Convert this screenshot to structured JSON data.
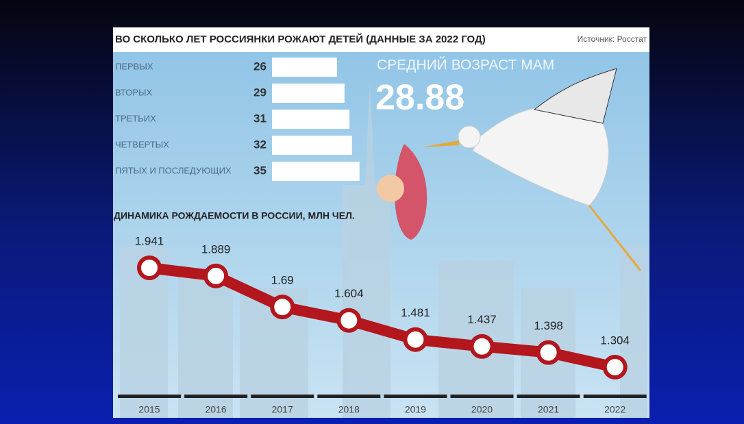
{
  "header": {
    "title": "ВО СКОЛЬКО ЛЕТ РОССИЯНКИ РОЖАЮТ ДЕТЕЙ (ДАННЫЕ ЗА 2022 ГОД)",
    "source": "Источник: Росстат"
  },
  "highlight": {
    "label": "СРЕДНИЙ ВОЗРАСТ МАМ",
    "value": 28.88
  },
  "chart_data": [
    {
      "type": "bar",
      "orientation": "horizontal",
      "color": "#ffffff",
      "categories": [
        "ПЕРВЫХ",
        "ВТОРЫХ",
        "ТРЕТЬИХ",
        "ЧЕТВЕРТЫХ",
        "ПЯТЫХ И ПОСЛЕДУЮЩИХ"
      ],
      "values": [
        26,
        29,
        31,
        32,
        35
      ]
    },
    {
      "type": "line",
      "title": "ДИНАМИКА РОЖДАЕМОСТИ В РОССИИ,  МЛН ЧЕЛ.",
      "color": "#b3161c",
      "categories": [
        "2015",
        "2016",
        "2017",
        "2018",
        "2019",
        "2020",
        "2021",
        "2022"
      ],
      "values": [
        1.941,
        1.889,
        1.69,
        1.604,
        1.481,
        1.437,
        1.398,
        1.304
      ]
    }
  ]
}
